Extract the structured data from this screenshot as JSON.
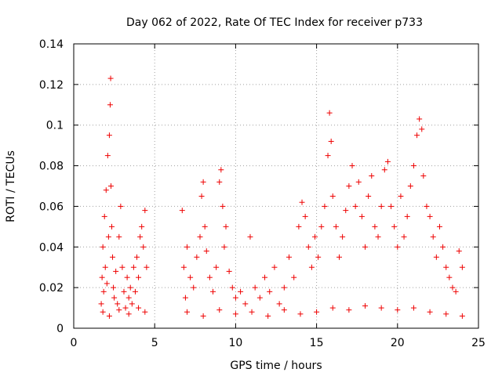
{
  "chart_data": {
    "type": "scatter",
    "title": "Day 062 of 2022, Rate Of TEC Index for receiver p733",
    "xlabel": "GPS time / hours",
    "ylabel": "ROTI / TECUs",
    "xlim": [
      0,
      25
    ],
    "ylim": [
      0,
      0.14
    ],
    "grid": true,
    "marker": "+",
    "color": "#ee0000",
    "x_ticks": [
      0,
      5,
      10,
      15,
      20,
      25
    ],
    "x_tick_labels": [
      "0",
      "5",
      "10",
      "15",
      "20",
      "25"
    ],
    "y_ticks": [
      0,
      0.02,
      0.04,
      0.06,
      0.08,
      0.1,
      0.12,
      0.14
    ],
    "y_tick_labels": [
      "0",
      "0.02",
      "0.04",
      "0.06",
      "0.08",
      "0.1",
      "0.12",
      "0.14"
    ],
    "series": [
      {
        "name": "ROTI",
        "points": [
          [
            1.7,
            0.012
          ],
          [
            1.75,
            0.025
          ],
          [
            1.8,
            0.04
          ],
          [
            1.85,
            0.018
          ],
          [
            1.9,
            0.055
          ],
          [
            1.95,
            0.03
          ],
          [
            2.0,
            0.068
          ],
          [
            2.05,
            0.022
          ],
          [
            2.1,
            0.085
          ],
          [
            2.15,
            0.045
          ],
          [
            2.2,
            0.095
          ],
          [
            2.25,
            0.11
          ],
          [
            2.28,
            0.123
          ],
          [
            2.3,
            0.07
          ],
          [
            2.35,
            0.05
          ],
          [
            2.4,
            0.035
          ],
          [
            2.45,
            0.02
          ],
          [
            2.5,
            0.015
          ],
          [
            2.6,
            0.028
          ],
          [
            2.7,
            0.012
          ],
          [
            2.8,
            0.045
          ],
          [
            2.9,
            0.06
          ],
          [
            3.0,
            0.03
          ],
          [
            3.1,
            0.018
          ],
          [
            3.2,
            0.01
          ],
          [
            3.3,
            0.025
          ],
          [
            3.4,
            0.015
          ],
          [
            3.5,
            0.02
          ],
          [
            3.6,
            0.012
          ],
          [
            3.7,
            0.03
          ],
          [
            3.8,
            0.018
          ],
          [
            3.9,
            0.035
          ],
          [
            4.0,
            0.025
          ],
          [
            4.1,
            0.045
          ],
          [
            4.2,
            0.05
          ],
          [
            4.3,
            0.04
          ],
          [
            4.4,
            0.058
          ],
          [
            4.5,
            0.03
          ],
          [
            1.8,
            0.008
          ],
          [
            2.2,
            0.006
          ],
          [
            2.8,
            0.009
          ],
          [
            3.4,
            0.007
          ],
          [
            4.0,
            0.01
          ],
          [
            4.4,
            0.008
          ],
          [
            6.7,
            0.058
          ],
          [
            6.8,
            0.03
          ],
          [
            6.9,
            0.015
          ],
          [
            7.0,
            0.04
          ],
          [
            7.2,
            0.025
          ],
          [
            7.4,
            0.02
          ],
          [
            7.6,
            0.035
          ],
          [
            7.8,
            0.045
          ],
          [
            7.9,
            0.065
          ],
          [
            8.0,
            0.072
          ],
          [
            8.1,
            0.05
          ],
          [
            8.2,
            0.038
          ],
          [
            8.4,
            0.025
          ],
          [
            8.6,
            0.018
          ],
          [
            8.8,
            0.03
          ],
          [
            9.0,
            0.072
          ],
          [
            9.1,
            0.078
          ],
          [
            9.2,
            0.06
          ],
          [
            9.3,
            0.04
          ],
          [
            9.4,
            0.05
          ],
          [
            9.6,
            0.028
          ],
          [
            9.8,
            0.02
          ],
          [
            10.0,
            0.015
          ],
          [
            10.3,
            0.018
          ],
          [
            10.6,
            0.012
          ],
          [
            10.9,
            0.045
          ],
          [
            11.2,
            0.02
          ],
          [
            11.5,
            0.015
          ],
          [
            11.8,
            0.025
          ],
          [
            12.1,
            0.018
          ],
          [
            12.4,
            0.03
          ],
          [
            12.7,
            0.012
          ],
          [
            13.0,
            0.02
          ],
          [
            13.3,
            0.035
          ],
          [
            13.6,
            0.025
          ],
          [
            13.9,
            0.05
          ],
          [
            14.1,
            0.062
          ],
          [
            14.3,
            0.055
          ],
          [
            14.5,
            0.04
          ],
          [
            14.7,
            0.03
          ],
          [
            14.9,
            0.045
          ],
          [
            15.1,
            0.035
          ],
          [
            15.3,
            0.05
          ],
          [
            15.5,
            0.06
          ],
          [
            15.7,
            0.085
          ],
          [
            15.8,
            0.106
          ],
          [
            15.9,
            0.092
          ],
          [
            16.0,
            0.065
          ],
          [
            16.2,
            0.05
          ],
          [
            16.4,
            0.035
          ],
          [
            16.6,
            0.045
          ],
          [
            16.8,
            0.058
          ],
          [
            17.0,
            0.07
          ],
          [
            17.2,
            0.08
          ],
          [
            17.4,
            0.06
          ],
          [
            17.6,
            0.072
          ],
          [
            17.8,
            0.055
          ],
          [
            18.0,
            0.04
          ],
          [
            18.2,
            0.065
          ],
          [
            18.4,
            0.075
          ],
          [
            18.6,
            0.05
          ],
          [
            18.8,
            0.045
          ],
          [
            19.0,
            0.06
          ],
          [
            19.2,
            0.078
          ],
          [
            19.4,
            0.082
          ],
          [
            19.6,
            0.06
          ],
          [
            19.8,
            0.05
          ],
          [
            20.0,
            0.04
          ],
          [
            20.2,
            0.065
          ],
          [
            20.4,
            0.045
          ],
          [
            20.6,
            0.055
          ],
          [
            20.8,
            0.07
          ],
          [
            21.0,
            0.08
          ],
          [
            21.2,
            0.095
          ],
          [
            21.35,
            0.103
          ],
          [
            21.5,
            0.098
          ],
          [
            21.6,
            0.075
          ],
          [
            21.8,
            0.06
          ],
          [
            22.0,
            0.055
          ],
          [
            22.2,
            0.045
          ],
          [
            22.4,
            0.035
          ],
          [
            22.6,
            0.05
          ],
          [
            22.8,
            0.04
          ],
          [
            23.0,
            0.03
          ],
          [
            23.2,
            0.025
          ],
          [
            23.4,
            0.02
          ],
          [
            23.6,
            0.018
          ],
          [
            23.8,
            0.038
          ],
          [
            24.0,
            0.03
          ],
          [
            7.0,
            0.008
          ],
          [
            8.0,
            0.006
          ],
          [
            9.0,
            0.009
          ],
          [
            10.0,
            0.007
          ],
          [
            11.0,
            0.008
          ],
          [
            12.0,
            0.006
          ],
          [
            13.0,
            0.009
          ],
          [
            14.0,
            0.007
          ],
          [
            15.0,
            0.008
          ],
          [
            16.0,
            0.01
          ],
          [
            17.0,
            0.009
          ],
          [
            18.0,
            0.011
          ],
          [
            19.0,
            0.01
          ],
          [
            20.0,
            0.009
          ],
          [
            21.0,
            0.01
          ],
          [
            22.0,
            0.008
          ],
          [
            23.0,
            0.007
          ],
          [
            24.0,
            0.006
          ]
        ]
      }
    ]
  }
}
